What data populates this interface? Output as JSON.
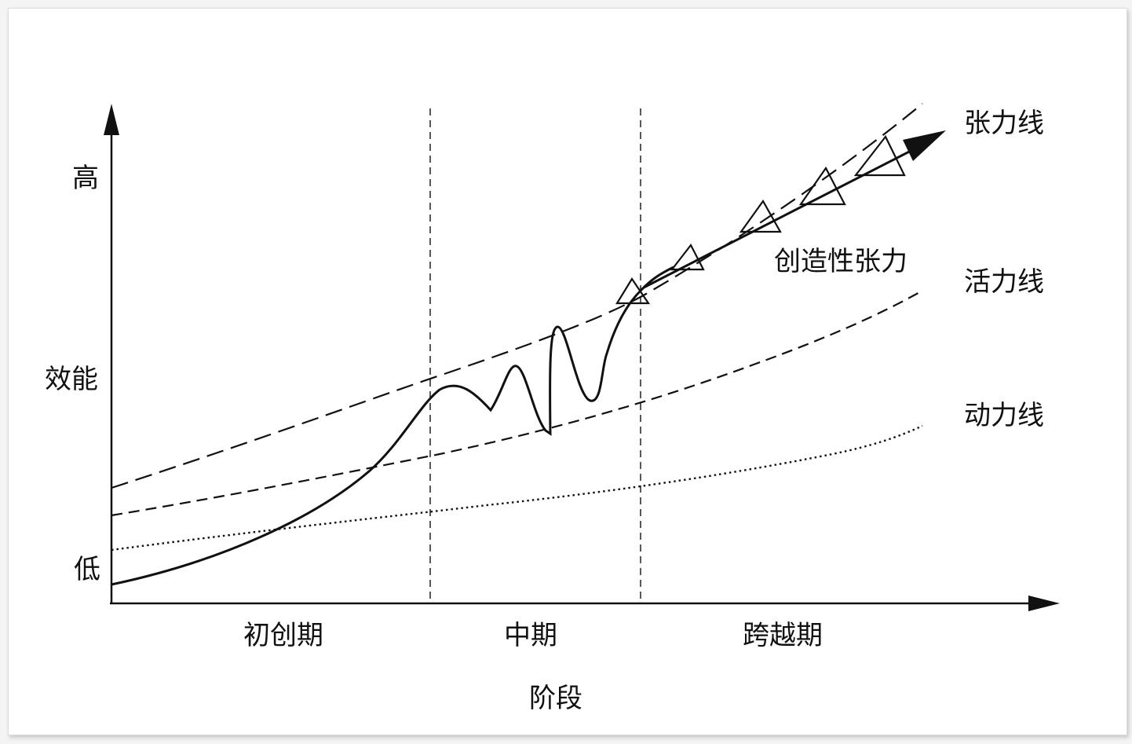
{
  "yaxis": {
    "label": "效能",
    "high_label": "高",
    "low_label": "低"
  },
  "xaxis": {
    "label": "阶段",
    "stages": [
      "初创期",
      "中期",
      "跨越期"
    ]
  },
  "lines": {
    "tension_line": "张力线",
    "vitality_line": "活力线",
    "power_line": "动力线",
    "creative_tension": "创造性张力"
  },
  "colors": {
    "ink": "#111111",
    "background": "#ffffff"
  }
}
